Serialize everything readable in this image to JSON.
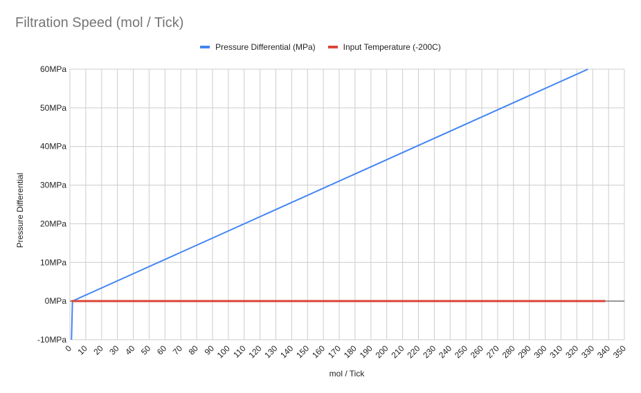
{
  "chart_data": {
    "type": "line",
    "title": "Filtration Speed (mol / Tick)",
    "xlabel": "mol / Tick",
    "ylabel": "Pressure Differential",
    "xlim": [
      0,
      350
    ],
    "ylim": [
      -10,
      60
    ],
    "x_ticks": [
      0,
      10,
      20,
      30,
      40,
      50,
      60,
      70,
      80,
      90,
      100,
      110,
      120,
      130,
      140,
      150,
      160,
      170,
      180,
      190,
      200,
      210,
      220,
      230,
      240,
      250,
      260,
      270,
      280,
      290,
      300,
      310,
      320,
      330,
      340,
      350
    ],
    "y_ticks": [
      -10,
      0,
      10,
      20,
      30,
      40,
      50,
      60
    ],
    "y_tick_labels": [
      "-10MPa",
      "0MPa",
      "10MPa",
      "20MPa",
      "30MPa",
      "40MPa",
      "50MPa",
      "60MPa"
    ],
    "grid": true,
    "legend_position": "top",
    "series": [
      {
        "name": "Pressure Differential (MPa)",
        "color": "#4285f4",
        "points": [
          [
            1,
            -10
          ],
          [
            1.6,
            0
          ],
          [
            327,
            60
          ]
        ]
      },
      {
        "name": "Input Temperature (-200C)",
        "color": "#db4437",
        "points": [
          [
            1,
            0
          ],
          [
            338,
            0
          ]
        ]
      }
    ]
  }
}
